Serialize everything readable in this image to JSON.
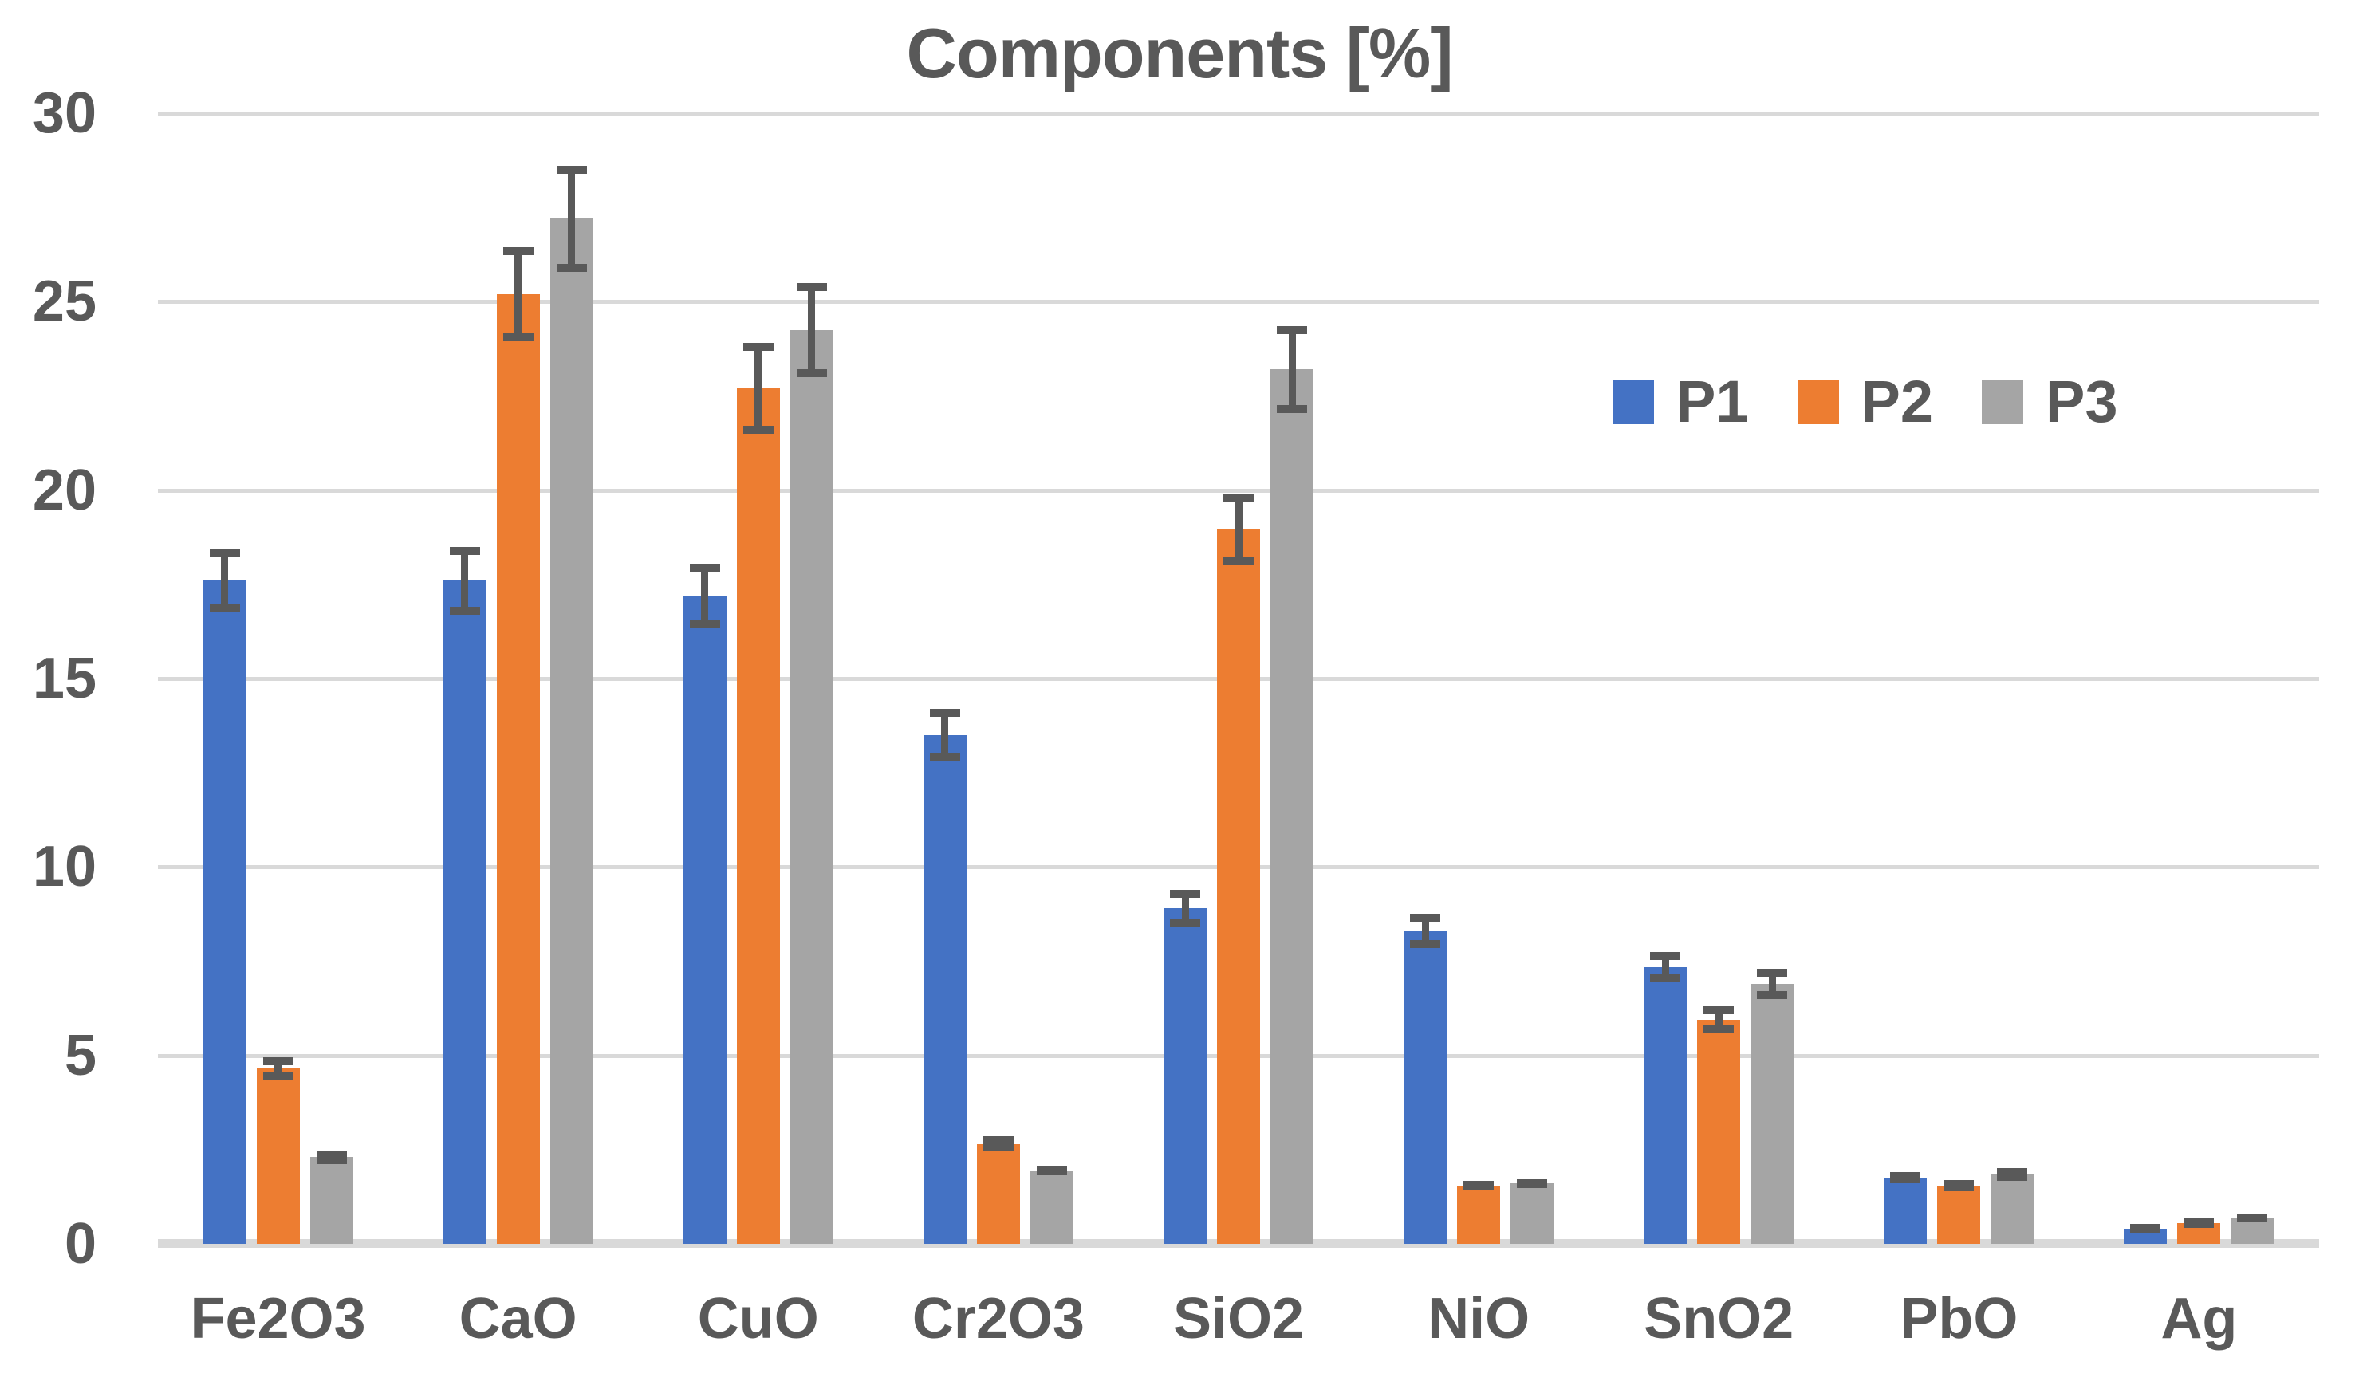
{
  "chart_data": {
    "type": "bar",
    "title": "Components [%]",
    "categories": [
      "Fe2O3",
      "CaO",
      "CuO",
      "Cr2O3",
      "SiO2",
      "NiO",
      "SnO2",
      "PbO",
      "Ag"
    ],
    "series": [
      {
        "name": "P1",
        "color": "#4472C4",
        "values": [
          17.6,
          17.6,
          17.2,
          13.5,
          8.9,
          8.3,
          7.35,
          1.75,
          0.4
        ],
        "errors": [
          0.85,
          0.9,
          0.85,
          0.7,
          0.5,
          0.45,
          0.4,
          0.15,
          0.08
        ]
      },
      {
        "name": "P2",
        "color": "#ED7D31",
        "values": [
          4.65,
          25.2,
          22.7,
          2.65,
          18.95,
          1.55,
          5.95,
          1.55,
          0.55
        ],
        "errors": [
          0.3,
          1.25,
          1.2,
          0.2,
          0.95,
          0.12,
          0.35,
          0.15,
          0.08
        ]
      },
      {
        "name": "P3",
        "color": "#A5A5A5",
        "values": [
          2.3,
          27.2,
          24.25,
          1.95,
          23.2,
          1.6,
          6.9,
          1.85,
          0.7
        ],
        "errors": [
          0.18,
          1.4,
          1.25,
          0.12,
          1.15,
          0.12,
          0.4,
          0.17,
          0.1
        ]
      }
    ],
    "ylim": [
      0,
      30
    ],
    "y_ticks": [
      0,
      5,
      10,
      15,
      20,
      25,
      30
    ],
    "grid": true,
    "legend_labels": [
      "P1",
      "P2",
      "P3"
    ],
    "legend_position": "upper-right-inside",
    "error_bars": true,
    "colors": {
      "text": "#595959",
      "gridline": "#D9D9D9",
      "error_bar": "#595959",
      "background": "#FFFFFF"
    }
  }
}
